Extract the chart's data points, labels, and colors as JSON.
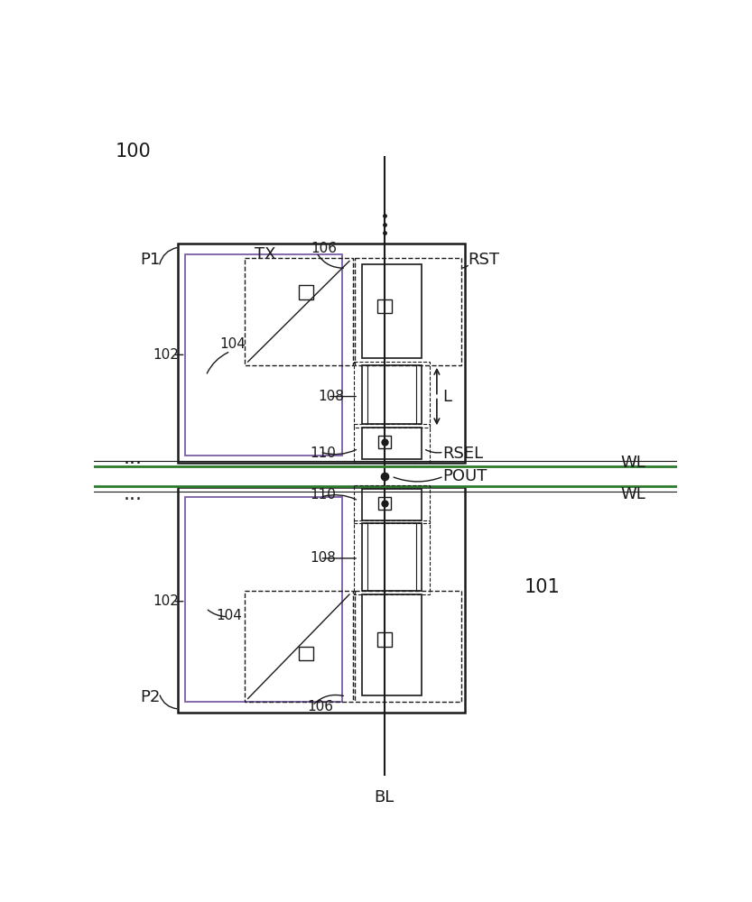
{
  "bg_color": "#ffffff",
  "lc": "#1a1a1a",
  "gc": "#2d7a2d",
  "fig_label": "100",
  "label_101": "101",
  "label_P1": "P1",
  "label_P2": "P2",
  "label_102_top": "102",
  "label_102_bot": "102",
  "label_104_top": "104",
  "label_104_bot": "104",
  "label_106_top": "106",
  "label_106_bot": "106",
  "label_108_top": "108",
  "label_108_bot": "108",
  "label_110_top": "110",
  "label_110_bot": "110",
  "label_TX": "TX",
  "label_RST": "RST",
  "label_RSEL": "RSEL",
  "label_POUT": "POUT",
  "label_WL_top": "WL",
  "label_WL_bot": "WL",
  "label_BL": "BL",
  "label_L": "L"
}
